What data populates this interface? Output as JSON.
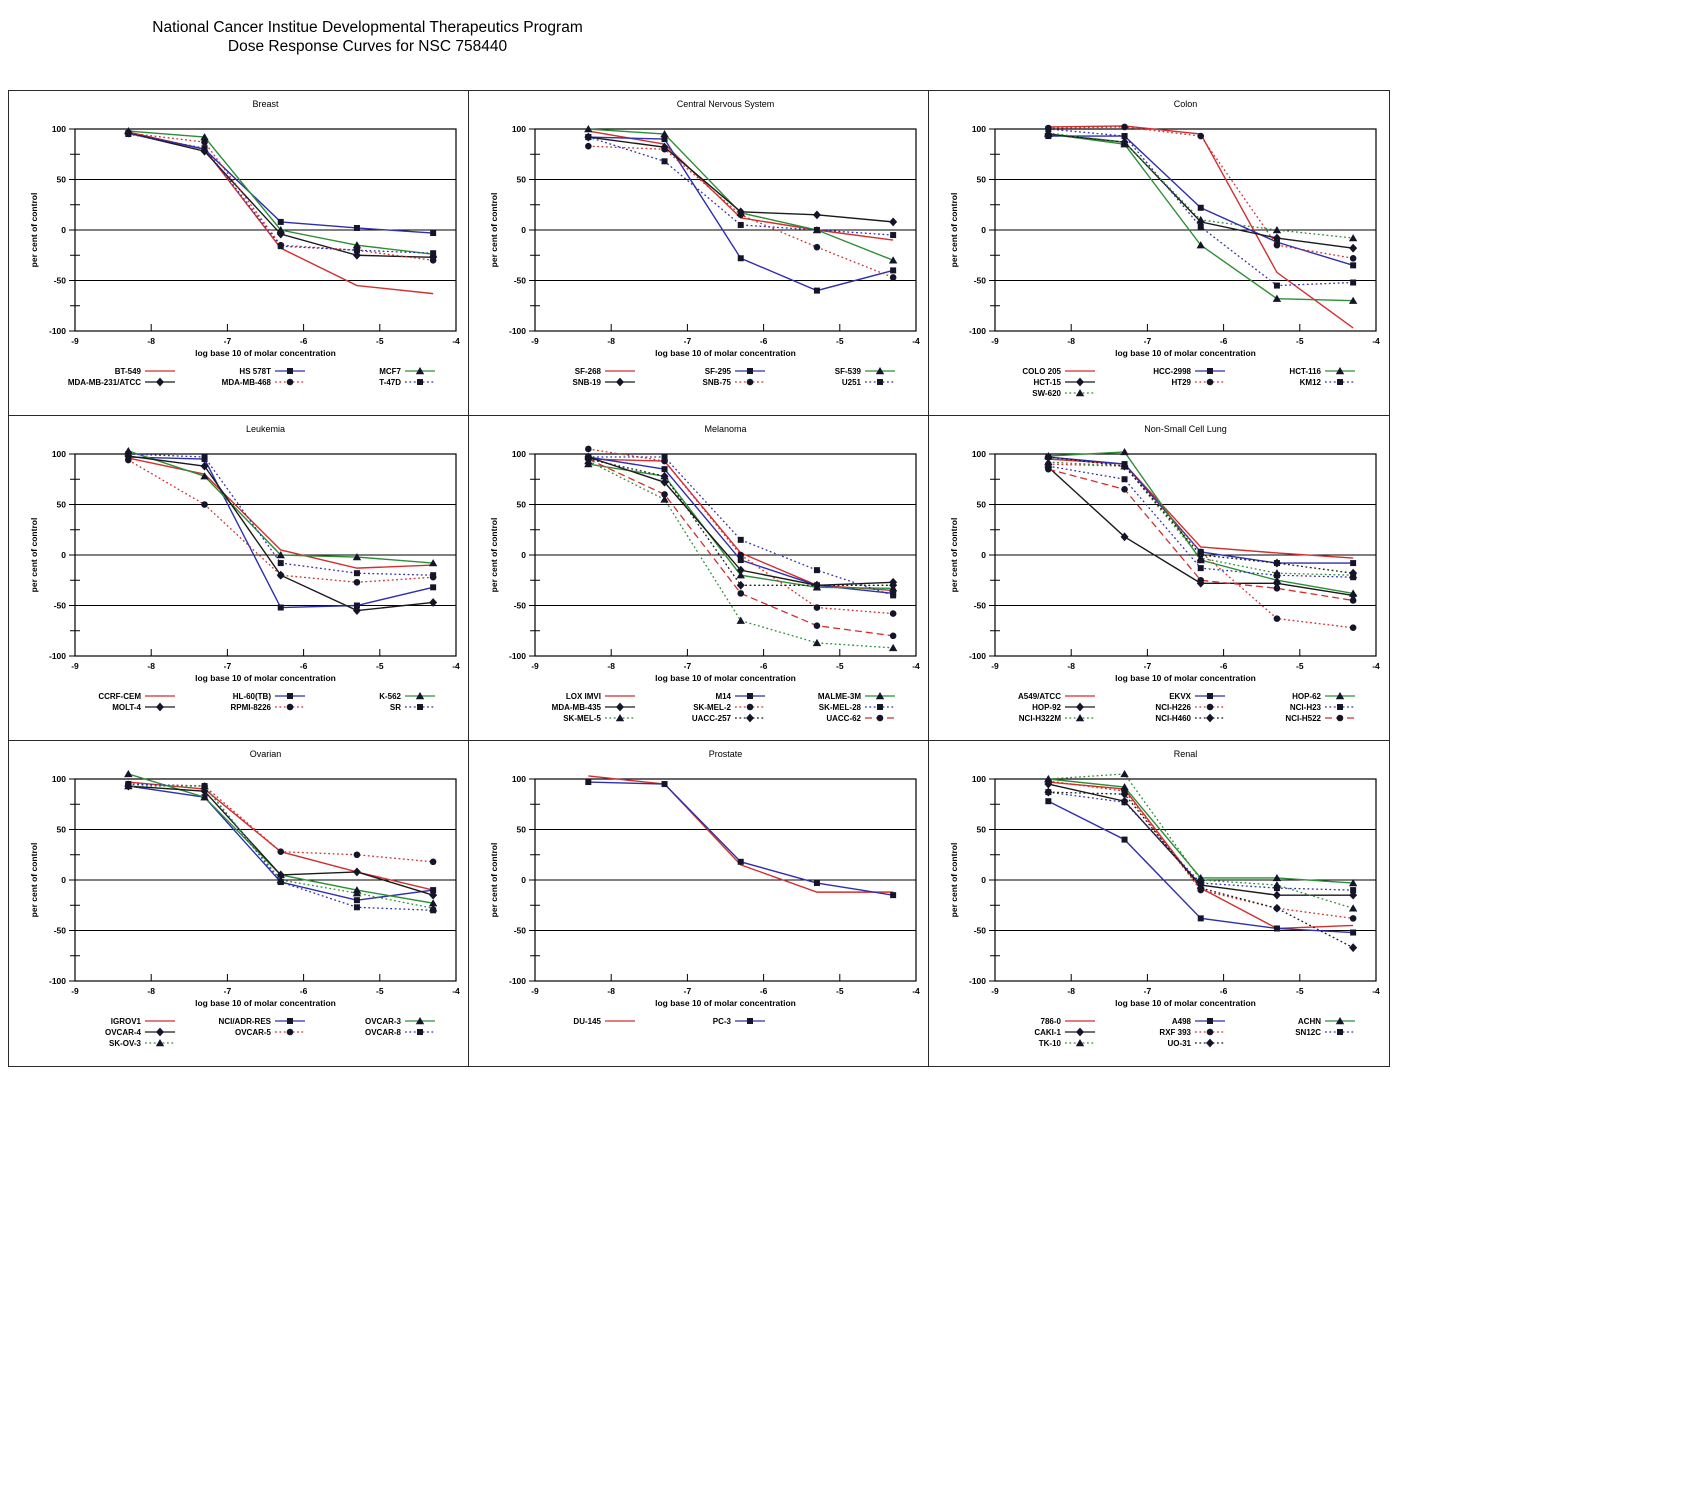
{
  "header": {
    "title_line1": "National Cancer Institue Developmental Therapeutics Program",
    "title_line2": "Dose Response Curves for NSC 758440"
  },
  "styles": {
    "red": "#d22f2f",
    "blue": "#2f2fae",
    "green": "#2d8f35",
    "black": "#1a1a1a",
    "marker": "#15152a",
    "axis": "#000000"
  },
  "axes": {
    "xlabel": "log base 10 of molar concentration",
    "ylabel": "per cent of control",
    "xlim": [
      -9,
      -4
    ],
    "ylim": [
      -100,
      100
    ],
    "xticks": [
      -9,
      -8,
      -7,
      -6,
      -5,
      -4
    ],
    "yticks": [
      -100,
      -50,
      0,
      50,
      100
    ],
    "y_minor_ticks": [
      -75,
      -25,
      25,
      75
    ],
    "gridlines_at": [
      -50,
      0,
      50
    ],
    "legend_position": "below"
  },
  "chart_data": [
    {
      "type": "line",
      "title": "Breast",
      "x": [
        -8.3,
        -7.3,
        -6.3,
        -5.3,
        -4.3
      ],
      "series": [
        {
          "name": "BT-549",
          "color": "red",
          "dash": "solid",
          "marker": "none",
          "values": [
            97,
            80,
            -18,
            -55,
            -63
          ]
        },
        {
          "name": "HS 578T",
          "color": "blue",
          "dash": "solid",
          "marker": "square",
          "values": [
            96,
            80,
            8,
            2,
            -3
          ]
        },
        {
          "name": "MCF7",
          "color": "green",
          "dash": "solid",
          "marker": "triangle",
          "values": [
            98,
            92,
            0,
            -15,
            -24
          ]
        },
        {
          "name": "MDA-MB-231/ATCC",
          "color": "black",
          "dash": "solid",
          "marker": "diamond",
          "values": [
            96,
            78,
            -4,
            -25,
            -27
          ]
        },
        {
          "name": "MDA-MB-468",
          "color": "red",
          "dash": "dotted",
          "marker": "circle",
          "values": [
            96,
            87,
            -15,
            -20,
            -30
          ]
        },
        {
          "name": "T-47D",
          "color": "blue",
          "dash": "dotted",
          "marker": "square",
          "values": [
            95,
            81,
            -16,
            -20,
            -23
          ]
        }
      ]
    },
    {
      "type": "line",
      "title": "Central Nervous System",
      "x": [
        -8.3,
        -7.3,
        -6.3,
        -5.3,
        -4.3
      ],
      "series": [
        {
          "name": "SF-268",
          "color": "red",
          "dash": "solid",
          "marker": "none",
          "values": [
            98,
            85,
            12,
            0,
            -10
          ]
        },
        {
          "name": "SF-295",
          "color": "blue",
          "dash": "solid",
          "marker": "square",
          "values": [
            92,
            90,
            -28,
            -60,
            -40
          ]
        },
        {
          "name": "SF-539",
          "color": "green",
          "dash": "solid",
          "marker": "triangle",
          "values": [
            100,
            95,
            17,
            0,
            -30
          ]
        },
        {
          "name": "SNB-19",
          "color": "black",
          "dash": "solid",
          "marker": "diamond",
          "values": [
            92,
            82,
            18,
            15,
            8
          ]
        },
        {
          "name": "SNB-75",
          "color": "red",
          "dash": "dotted",
          "marker": "circle",
          "values": [
            83,
            80,
            15,
            -17,
            -47
          ]
        },
        {
          "name": "U251",
          "color": "blue",
          "dash": "dotted",
          "marker": "square",
          "values": [
            92,
            68,
            5,
            0,
            -5
          ]
        }
      ]
    },
    {
      "type": "line",
      "title": "Colon",
      "x": [
        -8.3,
        -7.3,
        -6.3,
        -5.3,
        -4.3
      ],
      "series": [
        {
          "name": "COLO 205",
          "color": "red",
          "dash": "solid",
          "marker": "none",
          "values": [
            102,
            103,
            95,
            -42,
            -97
          ]
        },
        {
          "name": "HCC-2998",
          "color": "blue",
          "dash": "solid",
          "marker": "square",
          "values": [
            93,
            93,
            22,
            -12,
            -35
          ]
        },
        {
          "name": "HCT-116",
          "color": "green",
          "dash": "solid",
          "marker": "triangle",
          "values": [
            95,
            85,
            -15,
            -68,
            -70
          ]
        },
        {
          "name": "HCT-15",
          "color": "black",
          "dash": "solid",
          "marker": "diamond",
          "values": [
            95,
            87,
            8,
            -8,
            -18
          ]
        },
        {
          "name": "HT29",
          "color": "red",
          "dash": "dotted",
          "marker": "circle",
          "values": [
            101,
            102,
            93,
            -15,
            -28
          ]
        },
        {
          "name": "KM12",
          "color": "blue",
          "dash": "dotted",
          "marker": "square",
          "values": [
            100,
            93,
            3,
            -55,
            -52
          ]
        },
        {
          "name": "SW-620",
          "color": "green",
          "dash": "dotted",
          "marker": "triangle",
          "values": [
            96,
            87,
            10,
            0,
            -8
          ]
        }
      ]
    },
    {
      "type": "line",
      "title": "Leukemia",
      "x": [
        -8.3,
        -7.3,
        -6.3,
        -5.3,
        -4.3
      ],
      "series": [
        {
          "name": "CCRF-CEM",
          "color": "red",
          "dash": "solid",
          "marker": "none",
          "values": [
            96,
            80,
            5,
            -13,
            -10
          ]
        },
        {
          "name": "HL-60(TB)",
          "color": "blue",
          "dash": "solid",
          "marker": "square",
          "values": [
            97,
            95,
            -52,
            -50,
            -32
          ]
        },
        {
          "name": "K-562",
          "color": "green",
          "dash": "solid",
          "marker": "triangle",
          "values": [
            103,
            78,
            0,
            -2,
            -8
          ]
        },
        {
          "name": "MOLT-4",
          "color": "black",
          "dash": "solid",
          "marker": "diamond",
          "values": [
            98,
            88,
            -20,
            -55,
            -47
          ]
        },
        {
          "name": "RPMI-8226",
          "color": "red",
          "dash": "dotted",
          "marker": "circle",
          "values": [
            94,
            50,
            -20,
            -27,
            -22
          ]
        },
        {
          "name": "SR",
          "color": "blue",
          "dash": "dotted",
          "marker": "square",
          "values": [
            100,
            97,
            -8,
            -18,
            -20
          ]
        }
      ]
    },
    {
      "type": "line",
      "title": "Melanoma",
      "x": [
        -8.3,
        -7.3,
        -6.3,
        -5.3,
        -4.3
      ],
      "series": [
        {
          "name": "LOX IMVI",
          "color": "red",
          "dash": "solid",
          "marker": "none",
          "values": [
            95,
            93,
            2,
            -30,
            -35
          ]
        },
        {
          "name": "M14",
          "color": "blue",
          "dash": "solid",
          "marker": "square",
          "values": [
            97,
            85,
            -5,
            -30,
            -38
          ]
        },
        {
          "name": "MALME-3M",
          "color": "green",
          "dash": "solid",
          "marker": "triangle",
          "values": [
            90,
            78,
            -20,
            -32,
            -33
          ]
        },
        {
          "name": "MDA-MB-435",
          "color": "black",
          "dash": "solid",
          "marker": "diamond",
          "values": [
            97,
            72,
            -15,
            -30,
            -27
          ]
        },
        {
          "name": "SK-MEL-2",
          "color": "red",
          "dash": "dotted",
          "marker": "circle",
          "values": [
            105,
            93,
            0,
            -52,
            -58
          ]
        },
        {
          "name": "SK-MEL-28",
          "color": "blue",
          "dash": "dotted",
          "marker": "square",
          "values": [
            97,
            97,
            15,
            -15,
            -40
          ]
        },
        {
          "name": "SK-MEL-5",
          "color": "green",
          "dash": "dotted",
          "marker": "triangle",
          "values": [
            93,
            55,
            -65,
            -87,
            -92
          ]
        },
        {
          "name": "UACC-257",
          "color": "black",
          "dash": "dotted",
          "marker": "diamond",
          "values": [
            95,
            78,
            -30,
            -30,
            -30
          ]
        },
        {
          "name": "UACC-62",
          "color": "red",
          "dash": "dashed",
          "marker": "circle",
          "values": [
            95,
            60,
            -38,
            -70,
            -80
          ]
        }
      ]
    },
    {
      "type": "line",
      "title": "Non-Small Cell Lung",
      "x": [
        -8.3,
        -7.3,
        -6.3,
        -5.3,
        -4.3
      ],
      "series": [
        {
          "name": "A549/ATCC",
          "color": "red",
          "dash": "solid",
          "marker": "none",
          "values": [
            95,
            90,
            8,
            2,
            -3
          ]
        },
        {
          "name": "EKVX",
          "color": "blue",
          "dash": "solid",
          "marker": "square",
          "values": [
            97,
            90,
            3,
            -8,
            -8
          ]
        },
        {
          "name": "HOP-62",
          "color": "green",
          "dash": "solid",
          "marker": "triangle",
          "values": [
            98,
            102,
            -5,
            -25,
            -38
          ]
        },
        {
          "name": "HOP-92",
          "color": "black",
          "dash": "solid",
          "marker": "diamond",
          "values": [
            87,
            18,
            -28,
            -28,
            -40
          ]
        },
        {
          "name": "NCI-H226",
          "color": "red",
          "dash": "dotted",
          "marker": "circle",
          "values": [
            90,
            88,
            3,
            -63,
            -72
          ]
        },
        {
          "name": "NCI-H23",
          "color": "blue",
          "dash": "dotted",
          "marker": "square",
          "values": [
            88,
            75,
            -13,
            -20,
            -22
          ]
        },
        {
          "name": "NCI-H322M",
          "color": "green",
          "dash": "dotted",
          "marker": "triangle",
          "values": [
            92,
            88,
            -3,
            -18,
            -20
          ]
        },
        {
          "name": "NCI-H460",
          "color": "black",
          "dash": "dotted",
          "marker": "diamond",
          "values": [
            97,
            88,
            0,
            -8,
            -18
          ]
        },
        {
          "name": "NCI-H522",
          "color": "red",
          "dash": "dashed",
          "marker": "circle",
          "values": [
            85,
            65,
            -25,
            -33,
            -45
          ]
        }
      ]
    },
    {
      "type": "line",
      "title": "Ovarian",
      "x": [
        -8.3,
        -7.3,
        -6.3,
        -5.3,
        -4.3
      ],
      "series": [
        {
          "name": "IGROV1",
          "color": "red",
          "dash": "solid",
          "marker": "none",
          "values": [
            97,
            90,
            28,
            8,
            -10
          ]
        },
        {
          "name": "NCI/ADR-RES",
          "color": "blue",
          "dash": "solid",
          "marker": "square",
          "values": [
            93,
            82,
            -2,
            -20,
            -10
          ]
        },
        {
          "name": "OVCAR-3",
          "color": "green",
          "dash": "solid",
          "marker": "triangle",
          "values": [
            105,
            82,
            5,
            -10,
            -23
          ]
        },
        {
          "name": "OVCAR-4",
          "color": "black",
          "dash": "solid",
          "marker": "diamond",
          "values": [
            93,
            88,
            5,
            8,
            -15
          ]
        },
        {
          "name": "OVCAR-5",
          "color": "red",
          "dash": "dotted",
          "marker": "circle",
          "values": [
            95,
            93,
            28,
            25,
            18
          ]
        },
        {
          "name": "OVCAR-8",
          "color": "blue",
          "dash": "dotted",
          "marker": "square",
          "values": [
            95,
            93,
            -2,
            -27,
            -30
          ]
        },
        {
          "name": "SK-OV-3",
          "color": "green",
          "dash": "dotted",
          "marker": "triangle",
          "values": [
            93,
            93,
            0,
            -13,
            -28
          ]
        }
      ]
    },
    {
      "type": "line",
      "title": "Prostate",
      "x": [
        -8.3,
        -7.3,
        -6.3,
        -5.3,
        -4.3
      ],
      "series": [
        {
          "name": "DU-145",
          "color": "red",
          "dash": "solid",
          "marker": "none",
          "values": [
            103,
            95,
            15,
            -12,
            -12
          ]
        },
        {
          "name": "PC-3",
          "color": "blue",
          "dash": "solid",
          "marker": "square",
          "values": [
            97,
            95,
            18,
            -3,
            -15
          ]
        }
      ]
    },
    {
      "type": "line",
      "title": "Renal",
      "x": [
        -8.3,
        -7.3,
        -6.3,
        -5.3,
        -4.3
      ],
      "series": [
        {
          "name": "786-0",
          "color": "red",
          "dash": "solid",
          "marker": "none",
          "values": [
            97,
            90,
            -8,
            -48,
            -45
          ]
        },
        {
          "name": "A498",
          "color": "blue",
          "dash": "solid",
          "marker": "square",
          "values": [
            78,
            40,
            -38,
            -48,
            -52
          ]
        },
        {
          "name": "ACHN",
          "color": "green",
          "dash": "solid",
          "marker": "triangle",
          "values": [
            100,
            92,
            2,
            2,
            -3
          ]
        },
        {
          "name": "CAKI-1",
          "color": "black",
          "dash": "solid",
          "marker": "diamond",
          "values": [
            95,
            78,
            -5,
            -15,
            -15
          ]
        },
        {
          "name": "RXF 393",
          "color": "red",
          "dash": "dotted",
          "marker": "circle",
          "values": [
            98,
            88,
            -10,
            -28,
            -38
          ]
        },
        {
          "name": "SN12C",
          "color": "blue",
          "dash": "dotted",
          "marker": "square",
          "values": [
            87,
            77,
            -3,
            -8,
            -10
          ]
        },
        {
          "name": "TK-10",
          "color": "green",
          "dash": "dotted",
          "marker": "triangle",
          "values": [
            100,
            105,
            0,
            -5,
            -28
          ]
        },
        {
          "name": "UO-31",
          "color": "black",
          "dash": "dotted",
          "marker": "diamond",
          "values": [
            87,
            85,
            -8,
            -28,
            -67
          ]
        }
      ]
    }
  ]
}
